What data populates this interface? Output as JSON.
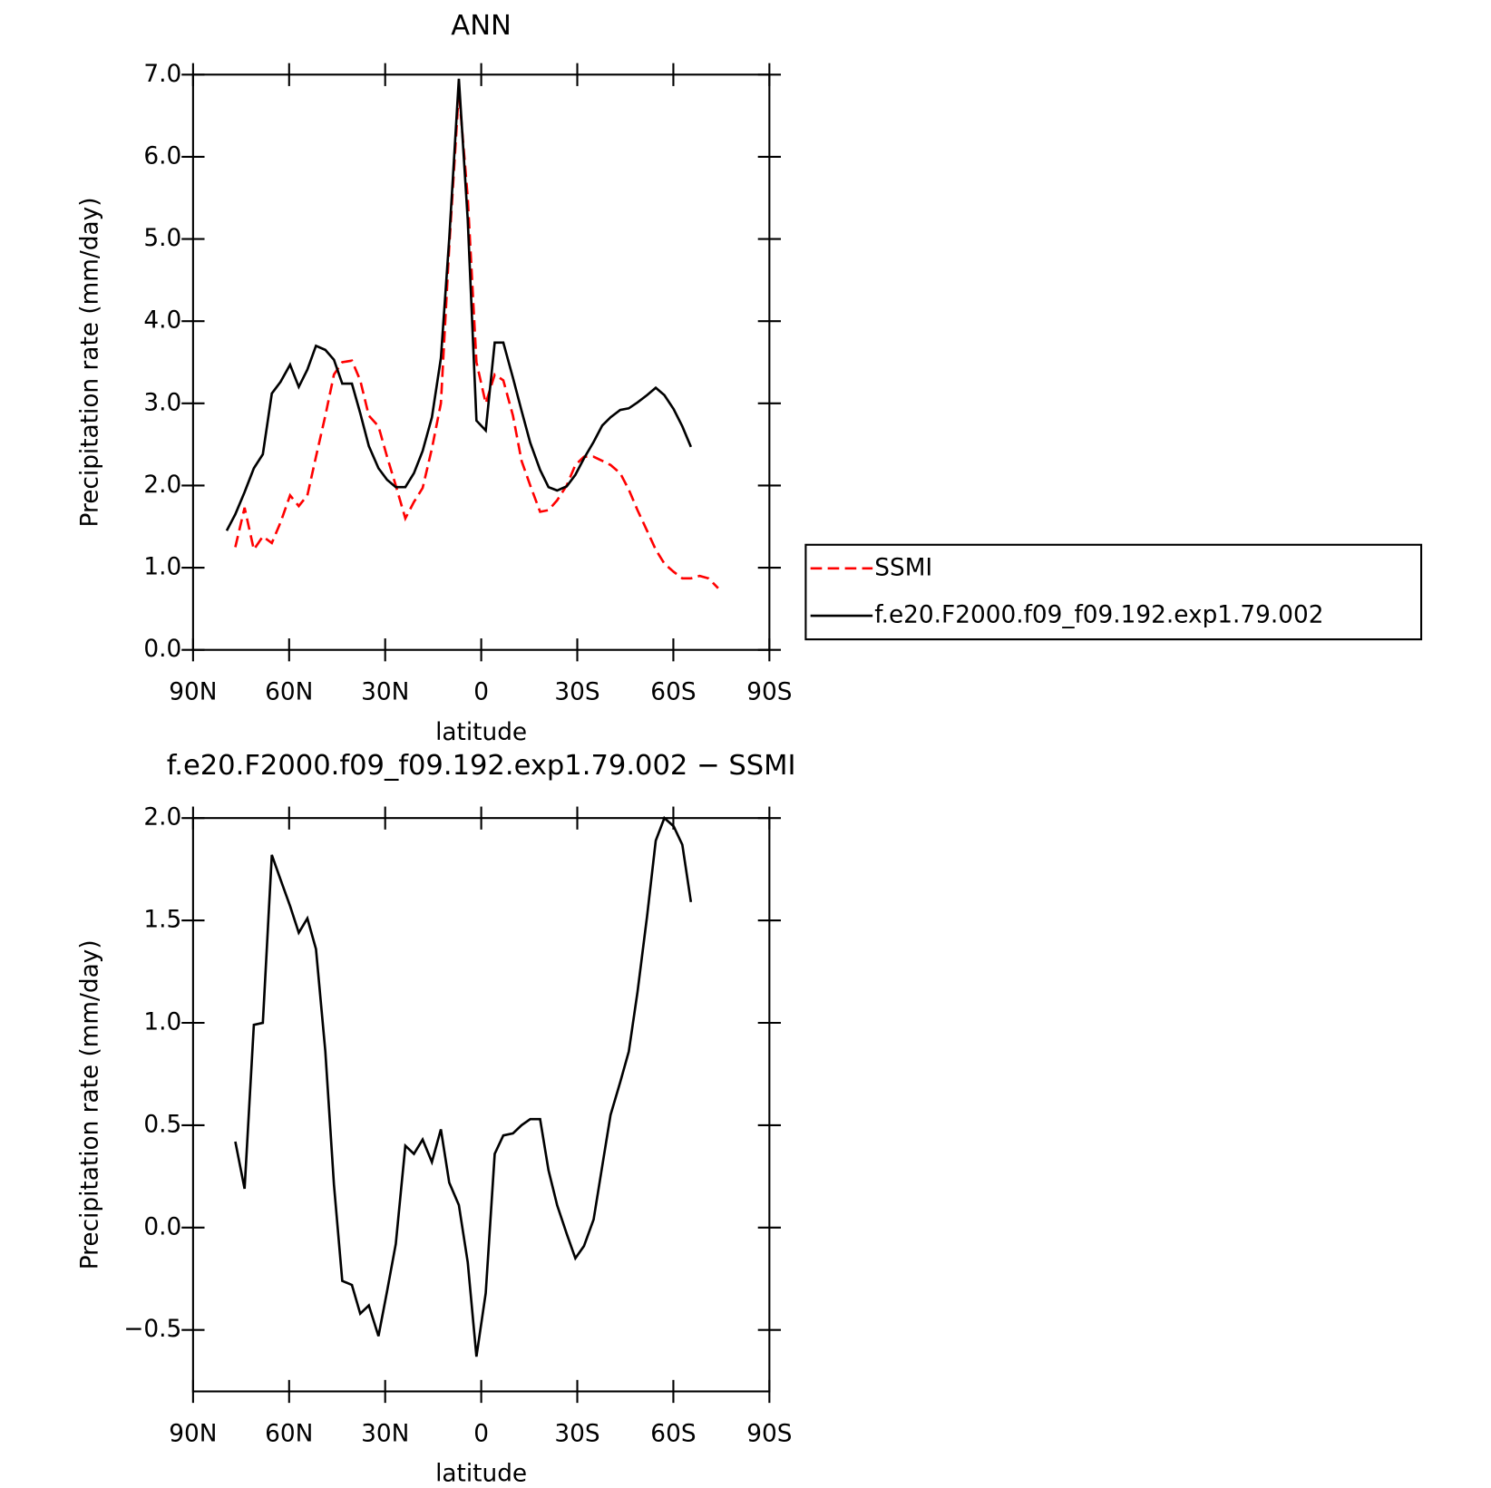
{
  "chart_data": [
    {
      "type": "line",
      "title": "ANN",
      "x_label": "latitude",
      "y_label": "Precipitation rate (mm/day)",
      "x": [
        79.5,
        76.8,
        73.9,
        71.0,
        68.2,
        65.4,
        62.7,
        59.7,
        57.0,
        54.3,
        51.6,
        48.7,
        46.0,
        43.4,
        40.4,
        37.8,
        35.1,
        32.1,
        29.4,
        26.7,
        23.7,
        21.0,
        18.3,
        15.4,
        12.6,
        10.0,
        7.0,
        4.2,
        1.5,
        -1.4,
        -4.2,
        -6.9,
        -9.9,
        -12.6,
        -15.3,
        -18.4,
        -21.0,
        -23.7,
        -26.7,
        -29.4,
        -32.1,
        -35.1,
        -37.8,
        -40.4,
        -43.4,
        -46.1,
        -48.8,
        -51.8,
        -54.5,
        -57.2,
        -60.1,
        -62.8,
        -65.5,
        -68.2,
        -71.0,
        -74.0
      ],
      "series": [
        {
          "name": "SSMI",
          "color": "#ff0000",
          "style": "dashed",
          "values": [
            null,
            1.25,
            1.73,
            1.22,
            1.38,
            1.3,
            1.55,
            1.88,
            1.75,
            1.88,
            2.35,
            2.85,
            3.35,
            3.5,
            3.52,
            3.28,
            2.85,
            2.72,
            2.35,
            2.0,
            1.6,
            1.8,
            1.97,
            2.45,
            3.0,
            4.9,
            6.8,
            5.5,
            3.5,
            3.0,
            3.35,
            3.28,
            2.85,
            2.3,
            2.0,
            1.68,
            1.7,
            1.82,
            2.0,
            2.25,
            2.35,
            2.35,
            2.3,
            2.25,
            2.15,
            1.95,
            1.7,
            1.45,
            1.22,
            1.05,
            0.95,
            0.87,
            0.87,
            0.9,
            0.87,
            0.75
          ]
        },
        {
          "name": "f.e20.F2000.f09_f09.192.exp1.79.002",
          "color": "#000000",
          "style": "solid",
          "values": [
            1.45,
            1.65,
            1.92,
            2.21,
            2.38,
            3.12,
            3.26,
            3.47,
            3.2,
            3.41,
            3.7,
            3.65,
            3.53,
            3.24,
            3.24,
            2.88,
            2.48,
            2.21,
            2.07,
            1.98,
            1.98,
            2.15,
            2.42,
            2.83,
            3.55,
            5.0,
            6.95,
            5.23,
            2.79,
            2.67,
            3.74,
            3.74,
            3.31,
            2.91,
            2.52,
            2.19,
            1.98,
            1.94,
            1.99,
            2.13,
            2.33,
            2.53,
            2.73,
            2.83,
            2.92,
            2.94,
            3.01,
            3.1,
            3.19,
            3.1,
            2.93,
            2.72,
            2.47,
            null,
            null,
            null
          ]
        }
      ],
      "xlim": [
        90,
        -90
      ],
      "xticks": [
        {
          "value": 90,
          "label": "90N"
        },
        {
          "value": 60,
          "label": "60N"
        },
        {
          "value": 30,
          "label": "30N"
        },
        0,
        {
          "value": -30,
          "label": "30S"
        },
        {
          "value": -60,
          "label": "60S"
        },
        {
          "value": -90,
          "label": "90S"
        }
      ],
      "ylim": [
        0,
        7
      ],
      "yticks": [
        {
          "value": 0,
          "label": "0.0"
        },
        {
          "value": 1,
          "label": "1.0"
        },
        {
          "value": 2,
          "label": "2.0"
        },
        {
          "value": 3,
          "label": "3.0"
        },
        {
          "value": 4,
          "label": "4.0"
        },
        {
          "value": 5,
          "label": "5.0"
        },
        {
          "value": 6,
          "label": "6.0"
        },
        {
          "value": 7,
          "label": "7.0"
        }
      ],
      "legend": "right"
    },
    {
      "type": "line",
      "title": "f.e20.F2000.f09_f09.192.exp1.79.002 − SSMI",
      "x_label": "latitude",
      "y_label": "Precipitation rate (mm/day)",
      "x": [
        79.5,
        76.8,
        73.9,
        71.0,
        68.2,
        65.4,
        62.7,
        59.7,
        57.0,
        54.3,
        51.6,
        48.7,
        46.0,
        43.4,
        40.4,
        37.8,
        35.1,
        32.1,
        29.4,
        26.7,
        23.7,
        21.0,
        18.3,
        15.4,
        12.6,
        10.0,
        7.0,
        4.2,
        1.5,
        -1.4,
        -4.2,
        -6.9,
        -9.9,
        -12.6,
        -15.3,
        -18.4,
        -21.0,
        -23.7,
        -26.7,
        -29.4,
        -32.1,
        -35.1,
        -37.8,
        -40.4,
        -43.4,
        -46.1,
        -48.8,
        -51.8,
        -54.5,
        -57.2,
        -60.1,
        -62.8,
        -65.5,
        -68.2,
        -71.0,
        -74.0
      ],
      "series": [
        {
          "color": "#000000",
          "style": "solid",
          "values": [
            null,
            0.42,
            0.19,
            0.99,
            1.0,
            1.82,
            1.7,
            1.57,
            1.44,
            1.51,
            1.36,
            0.86,
            0.21,
            -0.26,
            -0.28,
            -0.42,
            -0.38,
            -0.53,
            -0.31,
            -0.08,
            0.4,
            0.36,
            0.43,
            0.32,
            0.48,
            0.22,
            0.11,
            -0.17,
            -0.63,
            -0.32,
            0.36,
            0.45,
            0.46,
            0.5,
            0.53,
            0.53,
            0.28,
            0.11,
            -0.03,
            -0.15,
            -0.09,
            0.04,
            0.3,
            0.55,
            0.71,
            0.86,
            1.15,
            1.52,
            1.89,
            2.0,
            1.96,
            1.87,
            1.59,
            null,
            null,
            null
          ]
        }
      ],
      "xlim": [
        90,
        -90
      ],
      "xticks": [
        {
          "value": 90,
          "label": "90N"
        },
        {
          "value": 60,
          "label": "60N"
        },
        {
          "value": 30,
          "label": "30N"
        },
        0,
        {
          "value": -30,
          "label": "30S"
        },
        {
          "value": -60,
          "label": "60S"
        },
        {
          "value": -90,
          "label": "90S"
        }
      ],
      "ylim": [
        -0.8,
        2.0
      ],
      "yticks": [
        {
          "value": -0.5,
          "label": "−0.5"
        },
        {
          "value": 0,
          "label": "0.0"
        },
        {
          "value": 0.5,
          "label": "0.5"
        },
        {
          "value": 1,
          "label": "1.0"
        },
        {
          "value": 1.5,
          "label": "1.5"
        },
        {
          "value": 2,
          "label": "2.0"
        }
      ]
    }
  ]
}
